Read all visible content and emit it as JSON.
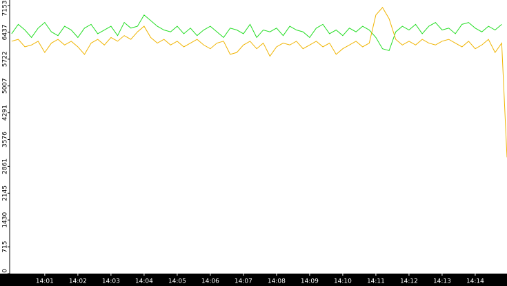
{
  "chart_data": {
    "type": "line",
    "x": [
      0,
      0.2,
      0.4,
      0.6,
      0.8,
      1,
      1.2,
      1.4,
      1.6,
      1.8,
      2,
      2.2,
      2.4,
      2.6,
      2.8,
      3,
      3.2,
      3.4,
      3.6,
      3.8,
      4,
      4.2,
      4.4,
      4.6,
      4.8,
      5,
      5.2,
      5.4,
      5.6,
      5.8,
      6,
      6.2,
      6.4,
      6.6,
      6.8,
      7,
      7.2,
      7.4,
      7.6,
      7.8,
      8,
      8.2,
      8.4,
      8.6,
      8.8,
      9,
      9.2,
      9.4,
      9.6,
      9.8,
      10,
      10.2,
      10.4,
      10.6,
      10.8,
      11,
      11.2,
      11.4,
      11.6,
      11.8,
      12,
      12.2,
      12.4,
      12.6,
      12.8,
      13,
      13.2,
      13.4,
      13.6,
      13.8,
      14,
      14.2,
      14.4,
      14.6,
      14.8,
      14.96
    ],
    "series": [
      {
        "color": "#22dd22",
        "values": [
          6400,
          6650,
          6500,
          6300,
          6550,
          6700,
          6450,
          6350,
          6600,
          6500,
          6300,
          6550,
          6650,
          6400,
          6500,
          6600,
          6350,
          6700,
          6550,
          6600,
          6900,
          6750,
          6600,
          6500,
          6450,
          6600,
          6400,
          6550,
          6350,
          6500,
          6600,
          6450,
          6300,
          6550,
          6500,
          6400,
          6650,
          6300,
          6500,
          6450,
          6550,
          6350,
          6600,
          6500,
          6450,
          6300,
          6550,
          6650,
          6400,
          6500,
          6350,
          6550,
          6450,
          6600,
          6500,
          6300,
          6000,
          5950,
          6450,
          6600,
          6500,
          6650,
          6400,
          6600,
          6700,
          6500,
          6550,
          6400,
          6650,
          6700,
          6550,
          6450,
          6600,
          6500,
          6650,
          null
        ]
      },
      {
        "color": "#f0b400",
        "values": [
          6200,
          6250,
          6050,
          6100,
          6200,
          5900,
          6150,
          6250,
          6100,
          6200,
          6050,
          5850,
          6150,
          6250,
          6100,
          6300,
          6200,
          6350,
          6250,
          6450,
          6600,
          6300,
          6150,
          6250,
          6100,
          6200,
          6050,
          6150,
          6250,
          6100,
          6000,
          6150,
          6200,
          5850,
          5900,
          6100,
          6200,
          6000,
          6150,
          5800,
          6050,
          6150,
          6100,
          6200,
          6000,
          6100,
          6200,
          6050,
          6150,
          5850,
          6000,
          6100,
          6200,
          6050,
          6150,
          6900,
          7100,
          6800,
          6250,
          6100,
          6200,
          6100,
          6250,
          6150,
          6100,
          6200,
          6250,
          6150,
          6050,
          6200,
          6000,
          6100,
          6250,
          5900,
          6150,
          3100
        ]
      }
    ],
    "xlim": [
      -0.06,
      14.96
    ],
    "xticks": [
      {
        "value": 1,
        "label": "14:01"
      },
      {
        "value": 2,
        "label": "14:02"
      },
      {
        "value": 3,
        "label": "14:03"
      },
      {
        "value": 4,
        "label": "14:04"
      },
      {
        "value": 5,
        "label": "14:05"
      },
      {
        "value": 6,
        "label": "14:06"
      },
      {
        "value": 7,
        "label": "14:07"
      },
      {
        "value": 8,
        "label": "14:08"
      },
      {
        "value": 9,
        "label": "14:09"
      },
      {
        "value": 10,
        "label": "14:10"
      },
      {
        "value": 11,
        "label": "14:11"
      },
      {
        "value": 12,
        "label": "14:12"
      },
      {
        "value": 13,
        "label": "14:13"
      },
      {
        "value": 14,
        "label": "14:14"
      }
    ],
    "ylim": [
      0,
      7153
    ],
    "yticks": [
      0,
      715,
      1430,
      2145,
      2861,
      3576,
      4291,
      5007,
      5722,
      6437,
      7153
    ],
    "grid": false
  }
}
